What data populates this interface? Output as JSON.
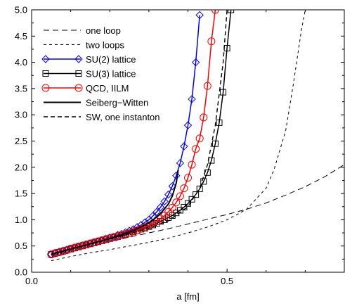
{
  "chart_data": {
    "type": "line",
    "xlabel": "a [fm]",
    "ylabel": "",
    "xlim": [
      0,
      0.8
    ],
    "ylim": [
      0,
      5.0
    ],
    "x_ticks": [
      "0.0",
      "0.5"
    ],
    "y_ticks": [
      "0.0",
      "0.5",
      "1.0",
      "1.5",
      "2.0",
      "2.5",
      "3.0",
      "3.5",
      "4.0",
      "4.5",
      "5.0"
    ],
    "grid": false,
    "legend_position": "top-left",
    "series": [
      {
        "name": "one loop",
        "style": "long-dash",
        "color": "#000000",
        "x": [
          0.05,
          0.1,
          0.15,
          0.2,
          0.25,
          0.3,
          0.35,
          0.4,
          0.45,
          0.5,
          0.55,
          0.6,
          0.65,
          0.7,
          0.75,
          0.8
        ],
        "y": [
          0.32,
          0.41,
          0.5,
          0.58,
          0.67,
          0.75,
          0.83,
          0.92,
          1.01,
          1.1,
          1.2,
          1.32,
          1.47,
          1.63,
          1.82,
          2.05
        ]
      },
      {
        "name": "two loops",
        "style": "short-dash",
        "color": "#000000",
        "x": [
          0.05,
          0.1,
          0.15,
          0.2,
          0.25,
          0.3,
          0.35,
          0.4,
          0.45,
          0.5,
          0.55,
          0.6,
          0.62,
          0.65,
          0.67,
          0.69,
          0.7
        ],
        "y": [
          0.22,
          0.3,
          0.37,
          0.43,
          0.5,
          0.57,
          0.65,
          0.75,
          0.86,
          1.0,
          1.2,
          1.6,
          1.95,
          2.7,
          3.6,
          4.6,
          5.0
        ]
      },
      {
        "name": "SU(2)  lattice",
        "style": "marker-diamond",
        "color": "#0000ff",
        "x": [
          0.05,
          0.06,
          0.07,
          0.08,
          0.09,
          0.1,
          0.11,
          0.12,
          0.13,
          0.14,
          0.15,
          0.16,
          0.17,
          0.18,
          0.19,
          0.2,
          0.21,
          0.22,
          0.23,
          0.24,
          0.25,
          0.26,
          0.27,
          0.28,
          0.29,
          0.3,
          0.31,
          0.32,
          0.33,
          0.34,
          0.35,
          0.36,
          0.37,
          0.38,
          0.39,
          0.4,
          0.41,
          0.42,
          0.43
        ],
        "y": [
          0.34,
          0.37,
          0.39,
          0.41,
          0.43,
          0.45,
          0.47,
          0.49,
          0.51,
          0.53,
          0.55,
          0.57,
          0.59,
          0.61,
          0.64,
          0.66,
          0.68,
          0.71,
          0.73,
          0.76,
          0.79,
          0.82,
          0.86,
          0.9,
          0.95,
          1.0,
          1.07,
          1.15,
          1.24,
          1.35,
          1.48,
          1.64,
          1.84,
          2.08,
          2.4,
          2.8,
          3.3,
          4.0,
          4.9
        ]
      },
      {
        "name": "SU(3) lattice",
        "style": "marker-square",
        "color": "#000000",
        "x": [
          0.05,
          0.06,
          0.07,
          0.08,
          0.09,
          0.1,
          0.11,
          0.12,
          0.13,
          0.14,
          0.15,
          0.16,
          0.17,
          0.18,
          0.19,
          0.2,
          0.21,
          0.22,
          0.23,
          0.24,
          0.25,
          0.26,
          0.27,
          0.28,
          0.29,
          0.3,
          0.31,
          0.32,
          0.33,
          0.34,
          0.35,
          0.36,
          0.37,
          0.38,
          0.39,
          0.4,
          0.41,
          0.42,
          0.43,
          0.44,
          0.45,
          0.46,
          0.47,
          0.48,
          0.49,
          0.5,
          0.51
        ],
        "y": [
          0.34,
          0.36,
          0.38,
          0.4,
          0.42,
          0.44,
          0.46,
          0.48,
          0.5,
          0.52,
          0.54,
          0.56,
          0.58,
          0.6,
          0.62,
          0.64,
          0.66,
          0.68,
          0.7,
          0.72,
          0.74,
          0.77,
          0.79,
          0.82,
          0.84,
          0.87,
          0.9,
          0.93,
          0.97,
          1.0,
          1.04,
          1.08,
          1.13,
          1.18,
          1.24,
          1.31,
          1.39,
          1.48,
          1.59,
          1.73,
          1.9,
          2.13,
          2.45,
          2.85,
          3.43,
          4.27,
          5.0
        ]
      },
      {
        "name": "QCD, IILM",
        "style": "marker-circle",
        "color": "#ff0000",
        "x": [
          0.05,
          0.06,
          0.07,
          0.08,
          0.09,
          0.1,
          0.11,
          0.12,
          0.13,
          0.14,
          0.15,
          0.16,
          0.17,
          0.18,
          0.19,
          0.2,
          0.21,
          0.22,
          0.23,
          0.24,
          0.25,
          0.26,
          0.27,
          0.28,
          0.29,
          0.3,
          0.31,
          0.32,
          0.33,
          0.34,
          0.35,
          0.36,
          0.37,
          0.38,
          0.39,
          0.4,
          0.41,
          0.42,
          0.43,
          0.44,
          0.45,
          0.46,
          0.47
        ],
        "y": [
          0.34,
          0.36,
          0.38,
          0.4,
          0.42,
          0.45,
          0.47,
          0.49,
          0.51,
          0.53,
          0.55,
          0.57,
          0.59,
          0.61,
          0.63,
          0.65,
          0.67,
          0.69,
          0.71,
          0.73,
          0.75,
          0.78,
          0.8,
          0.83,
          0.86,
          0.89,
          0.93,
          0.97,
          1.02,
          1.08,
          1.15,
          1.23,
          1.33,
          1.45,
          1.6,
          1.8,
          2.05,
          2.35,
          2.55,
          2.95,
          3.55,
          4.4,
          5.0
        ]
      },
      {
        "name": "Seiberg−Witten",
        "style": "thick-solid",
        "color": "#000000",
        "x": [
          0.05,
          0.08,
          0.11,
          0.14,
          0.17,
          0.2,
          0.23,
          0.26,
          0.29,
          0.31,
          0.33,
          0.35,
          0.36,
          0.37,
          0.375
        ],
        "y": [
          0.34,
          0.4,
          0.46,
          0.52,
          0.58,
          0.64,
          0.71,
          0.79,
          0.9,
          0.99,
          1.12,
          1.3,
          1.45,
          1.7,
          1.95
        ]
      },
      {
        "name": "SW, one instanton",
        "style": "medium-dash",
        "color": "#000000",
        "x": [
          0.05,
          0.1,
          0.15,
          0.2,
          0.25,
          0.3,
          0.35,
          0.4,
          0.43,
          0.45,
          0.47,
          0.49,
          0.5
        ],
        "y": [
          0.34,
          0.44,
          0.53,
          0.63,
          0.73,
          0.84,
          0.98,
          1.25,
          1.6,
          2.05,
          2.8,
          4.0,
          5.0
        ]
      }
    ]
  }
}
